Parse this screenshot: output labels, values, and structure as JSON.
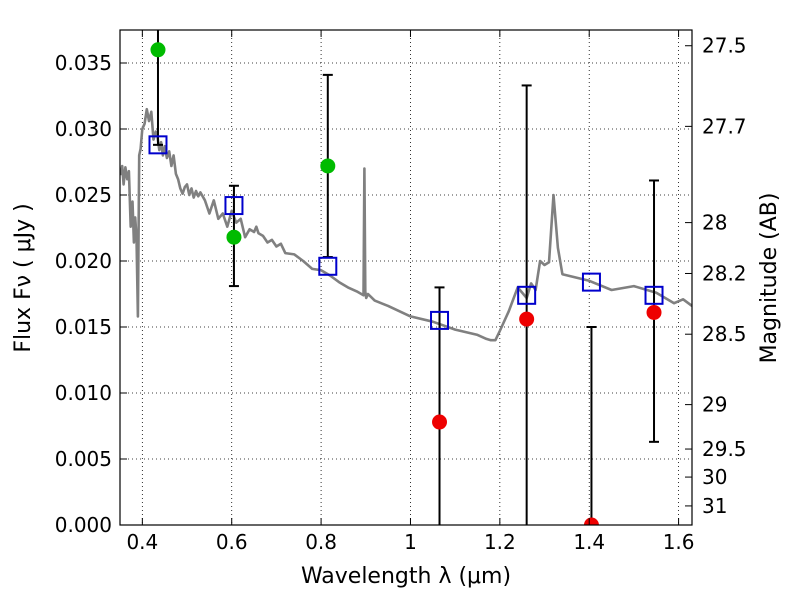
{
  "chart_data": {
    "type": "scatter",
    "xlabel": "Wavelength  λ (μm)",
    "ylabel": "Flux  Fν  ( μJy )",
    "y2label": "Magnitude (AB)",
    "xlim": [
      0.35,
      1.63
    ],
    "ylim": [
      0.0,
      0.0375
    ],
    "grid": true,
    "x_ticks": [
      {
        "value": 0.4,
        "label": "0.4"
      },
      {
        "value": 0.6,
        "label": "0.6"
      },
      {
        "value": 0.8,
        "label": "0.8"
      },
      {
        "value": 1.0,
        "label": "1"
      },
      {
        "value": 1.2,
        "label": "1.2"
      },
      {
        "value": 1.4,
        "label": "1.4"
      },
      {
        "value": 1.6,
        "label": "1.6"
      }
    ],
    "y_ticks": [
      {
        "value": 0.0,
        "label": "0.000"
      },
      {
        "value": 0.005,
        "label": "0.005"
      },
      {
        "value": 0.01,
        "label": "0.010"
      },
      {
        "value": 0.015,
        "label": "0.015"
      },
      {
        "value": 0.02,
        "label": "0.020"
      },
      {
        "value": 0.025,
        "label": "0.025"
      },
      {
        "value": 0.03,
        "label": "0.030"
      },
      {
        "value": 0.035,
        "label": "0.035"
      }
    ],
    "y2_ticks": [
      {
        "value": 27.5,
        "label": "27.5"
      },
      {
        "value": 27.7,
        "label": "27.7"
      },
      {
        "value": 28.0,
        "label": "28"
      },
      {
        "value": 28.2,
        "label": "28.2"
      },
      {
        "value": 28.5,
        "label": "28.5"
      },
      {
        "value": 29.0,
        "label": "29"
      },
      {
        "value": 29.5,
        "label": "29.5"
      },
      {
        "value": 30.0,
        "label": "30"
      },
      {
        "value": 31.0,
        "label": "31"
      }
    ],
    "series": [
      {
        "kind": "line",
        "color": "#808080",
        "x": [
          0.352,
          0.355,
          0.358,
          0.362,
          0.366,
          0.37,
          0.374,
          0.378,
          0.381,
          0.384,
          0.387,
          0.39,
          0.393,
          0.396,
          0.4,
          0.405,
          0.41,
          0.415,
          0.42,
          0.425,
          0.43,
          0.434,
          0.438,
          0.442,
          0.446,
          0.45,
          0.455,
          0.46,
          0.465,
          0.47,
          0.475,
          0.48,
          0.485,
          0.49,
          0.495,
          0.5,
          0.505,
          0.51,
          0.515,
          0.52,
          0.525,
          0.53,
          0.54,
          0.55,
          0.56,
          0.57,
          0.58,
          0.59,
          0.6,
          0.61,
          0.62,
          0.63,
          0.64,
          0.65,
          0.655,
          0.66,
          0.67,
          0.68,
          0.69,
          0.7,
          0.71,
          0.72,
          0.74,
          0.76,
          0.78,
          0.8,
          0.82,
          0.84,
          0.86,
          0.88,
          0.895,
          0.897,
          0.899,
          0.901,
          0.905,
          0.92,
          0.95,
          1.0,
          1.05,
          1.1,
          1.15,
          1.17,
          1.18,
          1.19,
          1.2,
          1.22,
          1.24,
          1.26,
          1.27,
          1.28,
          1.29,
          1.3,
          1.31,
          1.32,
          1.33,
          1.34,
          1.4,
          1.45,
          1.5,
          1.55,
          1.59,
          1.61,
          1.63
        ],
        "y": [
          0.0265,
          0.0272,
          0.0258,
          0.0271,
          0.0262,
          0.0268,
          0.0226,
          0.0245,
          0.0214,
          0.0233,
          0.0218,
          0.0158,
          0.028,
          0.0285,
          0.03,
          0.0304,
          0.0315,
          0.0306,
          0.0313,
          0.0292,
          0.0298,
          0.0294,
          0.0284,
          0.029,
          0.028,
          0.0287,
          0.0278,
          0.0283,
          0.0272,
          0.028,
          0.0266,
          0.0262,
          0.0255,
          0.0251,
          0.0256,
          0.0258,
          0.025,
          0.0255,
          0.0248,
          0.0253,
          0.0249,
          0.0252,
          0.0246,
          0.0236,
          0.0246,
          0.0232,
          0.0236,
          0.0226,
          0.0238,
          0.0229,
          0.0232,
          0.0218,
          0.0224,
          0.0222,
          0.0226,
          0.0221,
          0.0219,
          0.0214,
          0.0216,
          0.0211,
          0.0213,
          0.0206,
          0.0205,
          0.02,
          0.0194,
          0.0193,
          0.0189,
          0.0184,
          0.018,
          0.0177,
          0.0174,
          0.027,
          0.0177,
          0.0172,
          0.0175,
          0.017,
          0.0166,
          0.0158,
          0.0154,
          0.0148,
          0.0144,
          0.0141,
          0.014,
          0.014,
          0.0147,
          0.0162,
          0.018,
          0.0172,
          0.0183,
          0.0178,
          0.02,
          0.0197,
          0.0199,
          0.025,
          0.021,
          0.019,
          0.0185,
          0.0178,
          0.0181,
          0.0176,
          0.0168,
          0.0171,
          0.0166
        ]
      },
      {
        "kind": "squares",
        "color": "#0000cc",
        "x": [
          0.435,
          0.605,
          0.815,
          1.065,
          1.26,
          1.405,
          1.545
        ],
        "y": [
          0.0288,
          0.0242,
          0.0196,
          0.0155,
          0.0174,
          0.0184,
          0.0174
        ]
      },
      {
        "kind": "errorbars",
        "color": "#000000",
        "x": [
          0.435,
          0.605,
          0.815,
          1.065,
          1.26,
          1.405,
          1.545
        ],
        "lo": [
          0.0288,
          0.0181,
          0.0203,
          0.0,
          0.0,
          0.0,
          0.0063
        ],
        "hi": [
          0.0385,
          0.0257,
          0.0341,
          0.018,
          0.0333,
          0.015,
          0.0261
        ]
      },
      {
        "kind": "points",
        "color": "#00bb00",
        "x": [
          0.435,
          0.605,
          0.815
        ],
        "y": [
          0.036,
          0.0218,
          0.0272
        ]
      },
      {
        "kind": "points",
        "color": "#ee0000",
        "x": [
          1.065,
          1.26,
          1.405,
          1.545
        ],
        "y": [
          0.0078,
          0.0156,
          0.0,
          0.0161
        ]
      }
    ]
  }
}
